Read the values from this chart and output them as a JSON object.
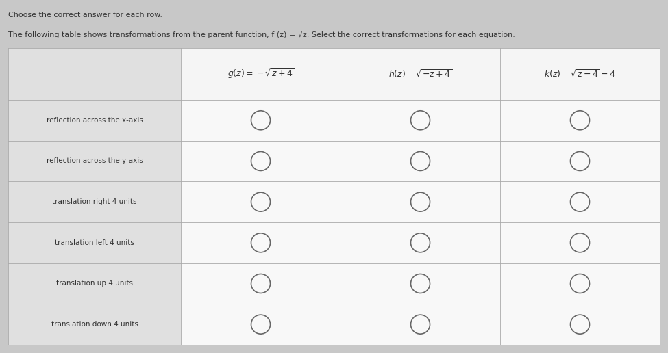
{
  "title_line1": "Choose the correct answer for each row.",
  "title_line2": "The following table shows transformations from the parent function, f (z) = √z. Select the correct transformations for each equation.",
  "col_headers_math": [
    "$g(z) = -\\sqrt{z+4}$",
    "$h(z) = \\sqrt{-z+4}$",
    "$k(z) = \\sqrt{z-4}-4$"
  ],
  "row_labels": [
    "reflection across the x-axis",
    "reflection across the y-axis",
    "translation right 4 units",
    "translation left 4 units",
    "translation up 4 units",
    "translation down 4 units"
  ],
  "page_bg": "#c8c8c8",
  "header_bg": "#f5f5f5",
  "cell_bg": "#f8f8f8",
  "row_label_bg": "#e0e0e0",
  "border_color": "#aaaaaa",
  "text_color": "#333333",
  "circle_color": "#666666",
  "title_fontsize": 8.0,
  "header_fontsize": 9.0,
  "label_fontsize": 7.5,
  "n_rows": 6,
  "n_cols": 3
}
